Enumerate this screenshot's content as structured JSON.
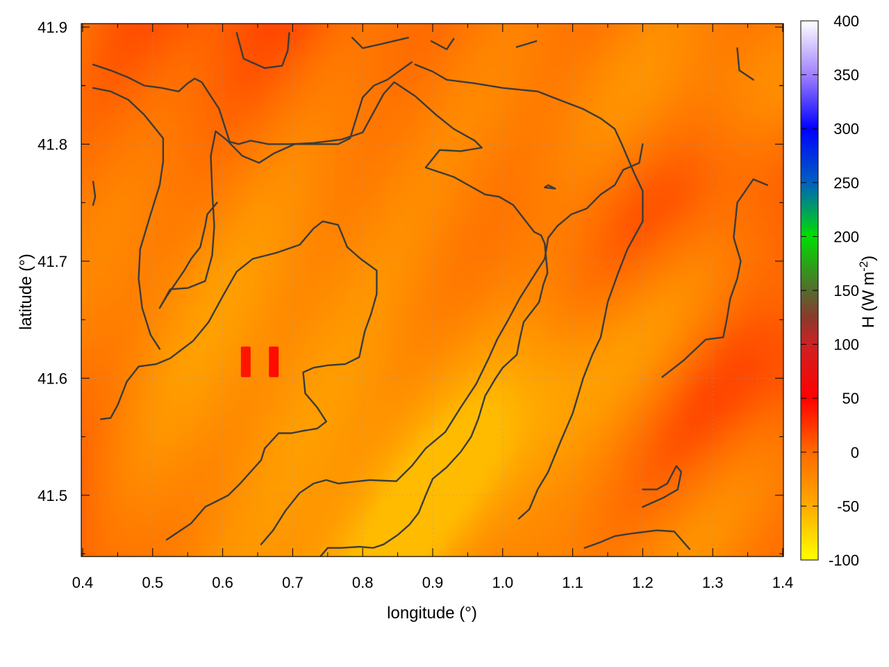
{
  "chart_data": {
    "type": "heatmap",
    "title": "",
    "xlabel": "longitude (°)",
    "ylabel": "latitude (°)",
    "xlim": [
      0.4,
      1.4
    ],
    "ylim": [
      41.45,
      41.9
    ],
    "x_ticks": [
      0.4,
      0.5,
      0.6,
      0.7,
      0.8,
      0.9,
      1.0,
      1.1,
      1.2,
      1.3,
      1.4
    ],
    "x_tick_labels": [
      "0.4",
      "0.5",
      "0.6",
      "0.7",
      "0.8",
      "0.9",
      "1.0",
      "1.1",
      "1.2",
      "1.3",
      "1.4"
    ],
    "y_ticks": [
      41.5,
      41.6,
      41.7,
      41.8,
      41.9
    ],
    "y_tick_labels": [
      "41.5",
      "41.6",
      "41.7",
      "41.8",
      "41.9"
    ],
    "grid": true,
    "colorbar": {
      "label_main": "H (W m",
      "label_sup": "-2",
      "label_end": ")",
      "range": [
        -100,
        400
      ],
      "ticks": [
        -100,
        -50,
        0,
        50,
        100,
        150,
        200,
        250,
        300,
        350,
        400
      ],
      "tick_labels": [
        "-100",
        "-50",
        "0",
        "50",
        "100",
        "150",
        "200",
        "250",
        "300",
        "350",
        "400"
      ],
      "stops": [
        {
          "value": -100,
          "color": "#ffff00"
        },
        {
          "value": -50,
          "color": "#ffaa00"
        },
        {
          "value": 0,
          "color": "#ff6a00"
        },
        {
          "value": 50,
          "color": "#ff0000"
        },
        {
          "value": 100,
          "color": "#cc2222"
        },
        {
          "value": 125,
          "color": "#8b3a2a"
        },
        {
          "value": 150,
          "color": "#556b2f"
        },
        {
          "value": 200,
          "color": "#00dd00"
        },
        {
          "value": 250,
          "color": "#0060c0"
        },
        {
          "value": 300,
          "color": "#0000ff"
        },
        {
          "value": 350,
          "color": "#a080ff"
        },
        {
          "value": 400,
          "color": "#ffffff"
        }
      ]
    },
    "field_description_values": {
      "typical_min": -60,
      "typical_max": 20
    },
    "hot_spots": [
      {
        "lon": 0.633,
        "lat": 41.614,
        "value": 40
      },
      {
        "lon": 0.673,
        "lat": 41.614,
        "value": 45
      }
    ],
    "contour_color": "#3b3b3b",
    "contours": [
      [
        [
          0.415,
          41.868
        ],
        [
          0.44,
          41.863
        ],
        [
          0.465,
          41.857
        ],
        [
          0.488,
          41.85
        ],
        [
          0.513,
          41.848
        ],
        [
          0.537,
          41.845
        ],
        [
          0.55,
          41.852
        ],
        [
          0.56,
          41.856
        ],
        [
          0.57,
          41.853
        ],
        [
          0.595,
          41.83
        ],
        [
          0.61,
          41.802
        ],
        [
          0.623,
          41.8
        ],
        [
          0.64,
          41.803
        ],
        [
          0.665,
          41.8
        ],
        [
          0.695,
          41.8
        ],
        [
          0.73,
          41.801
        ],
        [
          0.77,
          41.804
        ],
        [
          0.8,
          41.81
        ],
        [
          0.83,
          41.843
        ],
        [
          0.845,
          41.853
        ],
        [
          0.875,
          41.841
        ],
        [
          0.905,
          41.825
        ],
        [
          0.93,
          41.813
        ],
        [
          0.96,
          41.803
        ],
        [
          0.97,
          41.797
        ],
        [
          0.94,
          41.794
        ],
        [
          0.91,
          41.795
        ],
        [
          0.89,
          41.78
        ],
        [
          0.93,
          41.772
        ],
        [
          0.975,
          41.757
        ],
        [
          0.995,
          41.755
        ],
        [
          1.015,
          41.748
        ],
        [
          1.028,
          41.738
        ],
        [
          1.045,
          41.725
        ],
        [
          1.055,
          41.722
        ],
        [
          1.06,
          41.715
        ],
        [
          1.064,
          41.69
        ],
        [
          1.058,
          41.68
        ],
        [
          1.052,
          41.665
        ],
        [
          1.03,
          41.648
        ],
        [
          1.025,
          41.635
        ],
        [
          1.02,
          41.62
        ],
        [
          1.0,
          41.609
        ],
        [
          0.99,
          41.6
        ],
        [
          0.975,
          41.585
        ],
        [
          0.965,
          41.565
        ],
        [
          0.955,
          41.55
        ],
        [
          0.94,
          41.537
        ],
        [
          0.92,
          41.524
        ],
        [
          0.9,
          41.514
        ],
        [
          0.89,
          41.5
        ],
        [
          0.88,
          41.485
        ],
        [
          0.867,
          41.475
        ],
        [
          0.85,
          41.466
        ],
        [
          0.83,
          41.458
        ],
        [
          0.815,
          41.455
        ],
        [
          0.795,
          41.456
        ],
        [
          0.77,
          41.455
        ],
        [
          0.75,
          41.455
        ],
        [
          0.74,
          41.448
        ]
      ],
      [
        [
          0.415,
          41.848
        ],
        [
          0.44,
          41.845
        ],
        [
          0.465,
          41.838
        ],
        [
          0.488,
          41.825
        ],
        [
          0.515,
          41.805
        ],
        [
          0.515,
          41.785
        ],
        [
          0.51,
          41.765
        ],
        [
          0.497,
          41.74
        ],
        [
          0.482,
          41.71
        ],
        [
          0.48,
          41.685
        ],
        [
          0.485,
          41.66
        ],
        [
          0.497,
          41.637
        ],
        [
          0.51,
          41.625
        ]
      ],
      [
        [
          0.511,
          41.661
        ],
        [
          0.525,
          41.676
        ],
        [
          0.55,
          41.677
        ],
        [
          0.575,
          41.683
        ],
        [
          0.585,
          41.705
        ],
        [
          0.588,
          41.73
        ],
        [
          0.585,
          41.76
        ],
        [
          0.583,
          41.79
        ],
        [
          0.59,
          41.811
        ],
        [
          0.605,
          41.804
        ],
        [
          0.628,
          41.79
        ],
        [
          0.652,
          41.784
        ],
        [
          0.673,
          41.792
        ],
        [
          0.703,
          41.8
        ],
        [
          0.732,
          41.8
        ],
        [
          0.765,
          41.8
        ],
        [
          0.782,
          41.805
        ],
        [
          0.8,
          41.84
        ],
        [
          0.816,
          41.85
        ],
        [
          0.835,
          41.855
        ],
        [
          0.87,
          41.87
        ]
      ],
      [
        [
          0.426,
          41.565
        ],
        [
          0.44,
          41.566
        ],
        [
          0.45,
          41.577
        ],
        [
          0.463,
          41.597
        ],
        [
          0.48,
          41.61
        ],
        [
          0.505,
          41.612
        ],
        [
          0.525,
          41.617
        ],
        [
          0.558,
          41.632
        ],
        [
          0.58,
          41.648
        ],
        [
          0.6,
          41.67
        ],
        [
          0.62,
          41.691
        ],
        [
          0.643,
          41.702
        ],
        [
          0.676,
          41.707
        ],
        [
          0.71,
          41.714
        ],
        [
          0.73,
          41.728
        ],
        [
          0.743,
          41.734
        ],
        [
          0.765,
          41.731
        ],
        [
          0.778,
          41.712
        ],
        [
          0.797,
          41.702
        ],
        [
          0.82,
          41.692
        ],
        [
          0.82,
          41.672
        ],
        [
          0.812,
          41.655
        ],
        [
          0.803,
          41.64
        ],
        [
          0.795,
          41.618
        ],
        [
          0.775,
          41.612
        ],
        [
          0.75,
          41.611
        ],
        [
          0.73,
          41.609
        ],
        [
          0.715,
          41.605
        ],
        [
          0.718,
          41.587
        ],
        [
          0.735,
          41.575
        ],
        [
          0.748,
          41.563
        ],
        [
          0.735,
          41.557
        ],
        [
          0.715,
          41.555
        ],
        [
          0.698,
          41.553
        ],
        [
          0.68,
          41.553
        ],
        [
          0.66,
          41.54
        ],
        [
          0.655,
          41.53
        ],
        [
          0.64,
          41.52
        ],
        [
          0.625,
          41.51
        ],
        [
          0.608,
          41.5
        ],
        [
          0.595,
          41.496
        ],
        [
          0.575,
          41.49
        ],
        [
          0.555,
          41.476
        ],
        [
          0.52,
          41.462
        ]
      ],
      [
        [
          0.592,
          41.75
        ],
        [
          0.578,
          41.74
        ],
        [
          0.575,
          41.73
        ],
        [
          0.568,
          41.712
        ],
        [
          0.555,
          41.702
        ],
        [
          0.545,
          41.692
        ],
        [
          0.52,
          41.67
        ],
        [
          0.51,
          41.66
        ]
      ],
      [
        [
          0.655,
          41.458
        ],
        [
          0.672,
          41.47
        ],
        [
          0.69,
          41.487
        ],
        [
          0.71,
          41.502
        ],
        [
          0.73,
          41.51
        ],
        [
          0.748,
          41.513
        ],
        [
          0.765,
          41.51
        ],
        [
          0.81,
          41.513
        ],
        [
          0.848,
          41.512
        ],
        [
          0.87,
          41.525
        ],
        [
          0.89,
          41.54
        ],
        [
          0.918,
          41.554
        ],
        [
          0.94,
          41.575
        ],
        [
          0.962,
          41.595
        ],
        [
          0.98,
          41.617
        ],
        [
          0.992,
          41.633
        ],
        [
          1.008,
          41.65
        ],
        [
          1.024,
          41.668
        ],
        [
          1.045,
          41.688
        ],
        [
          1.06,
          41.702
        ],
        [
          1.065,
          41.72
        ],
        [
          1.078,
          41.73
        ],
        [
          1.098,
          41.74
        ],
        [
          1.12,
          41.745
        ],
        [
          1.14,
          41.757
        ],
        [
          1.16,
          41.765
        ],
        [
          1.172,
          41.778
        ],
        [
          1.195,
          41.784
        ],
        [
          1.2,
          41.8
        ]
      ],
      [
        [
          1.023,
          41.48
        ],
        [
          1.038,
          41.488
        ],
        [
          1.05,
          41.505
        ],
        [
          1.065,
          41.52
        ],
        [
          1.082,
          41.545
        ],
        [
          1.1,
          41.57
        ],
        [
          1.115,
          41.6
        ],
        [
          1.128,
          41.62
        ],
        [
          1.14,
          41.635
        ],
        [
          1.15,
          41.665
        ],
        [
          1.165,
          41.69
        ],
        [
          1.178,
          41.71
        ],
        [
          1.2,
          41.734
        ],
        [
          1.2,
          41.76
        ],
        [
          1.188,
          41.775
        ],
        [
          1.17,
          41.8
        ],
        [
          1.16,
          41.813
        ],
        [
          1.14,
          41.822
        ],
        [
          1.115,
          41.83
        ],
        [
          1.08,
          41.838
        ],
        [
          1.05,
          41.845
        ],
        [
          1.0,
          41.848
        ],
        [
          0.96,
          41.852
        ],
        [
          0.92,
          41.855
        ],
        [
          0.9,
          41.862
        ],
        [
          0.875,
          41.868
        ]
      ],
      [
        [
          1.117,
          41.455
        ],
        [
          1.14,
          41.46
        ],
        [
          1.16,
          41.465
        ],
        [
          1.18,
          41.467
        ],
        [
          1.22,
          41.47
        ],
        [
          1.245,
          41.469
        ],
        [
          1.267,
          41.454
        ]
      ],
      [
        [
          1.2,
          41.49
        ],
        [
          1.23,
          41.498
        ],
        [
          1.25,
          41.505
        ],
        [
          1.255,
          41.52
        ],
        [
          1.248,
          41.525
        ],
        [
          1.235,
          41.51
        ],
        [
          1.22,
          41.505
        ],
        [
          1.2,
          41.505
        ]
      ],
      [
        [
          1.228,
          41.601
        ],
        [
          1.258,
          41.615
        ],
        [
          1.29,
          41.633
        ],
        [
          1.315,
          41.635
        ],
        [
          1.32,
          41.65
        ],
        [
          1.325,
          41.668
        ],
        [
          1.335,
          41.685
        ],
        [
          1.34,
          41.7
        ],
        [
          1.33,
          41.72
        ],
        [
          1.335,
          41.75
        ],
        [
          1.358,
          41.77
        ],
        [
          1.378,
          41.765
        ]
      ],
      [
        [
          1.358,
          41.855
        ],
        [
          1.338,
          41.863
        ],
        [
          1.335,
          41.882
        ]
      ],
      [
        [
          0.62,
          41.895
        ],
        [
          0.63,
          41.873
        ],
        [
          0.66,
          41.865
        ],
        [
          0.685,
          41.867
        ],
        [
          0.693,
          41.88
        ],
        [
          0.695,
          41.895
        ]
      ],
      [
        [
          0.785,
          41.891
        ],
        [
          0.8,
          41.882
        ],
        [
          0.83,
          41.886
        ],
        [
          0.865,
          41.891
        ]
      ],
      [
        [
          0.898,
          41.888
        ],
        [
          0.92,
          41.881
        ],
        [
          0.93,
          41.89
        ]
      ],
      [
        [
          1.02,
          41.883
        ],
        [
          1.048,
          41.888
        ]
      ],
      [
        [
          1.06,
          41.763
        ],
        [
          1.075,
          41.762
        ],
        [
          1.065,
          41.765
        ],
        [
          1.06,
          41.763
        ]
      ],
      [
        [
          0.415,
          41.768
        ],
        [
          0.418,
          41.755
        ],
        [
          0.415,
          41.748
        ]
      ]
    ]
  }
}
